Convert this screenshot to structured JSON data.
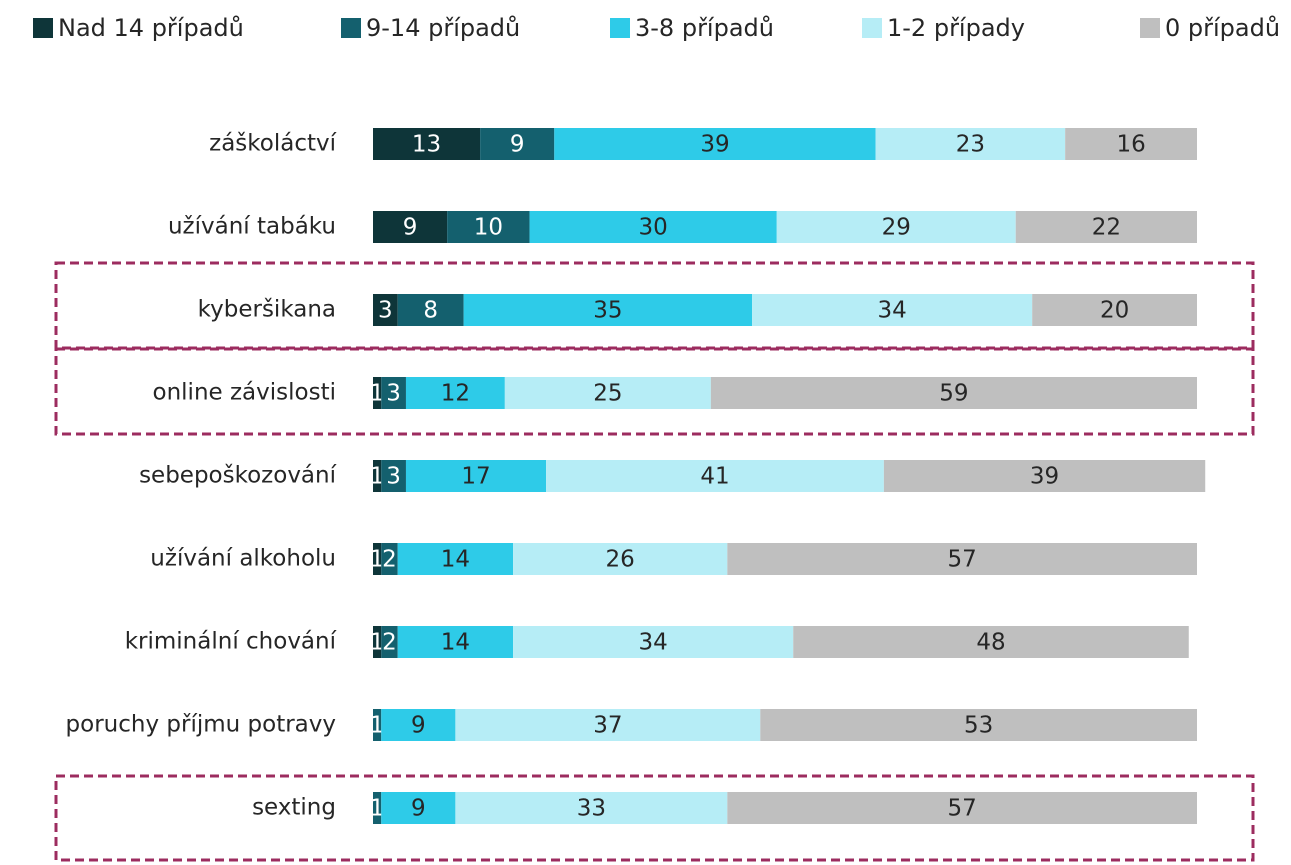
{
  "chart_data": {
    "type": "stacked_bar_horizontal",
    "categories": [
      "záškoláctví",
      "užívání tabáku",
      "kyberšikana",
      "online závislosti",
      "sebepoškozování",
      "užívání alkoholu",
      "kriminální chování",
      "poruchy příjmu potravy",
      "sexting"
    ],
    "series": [
      {
        "name": "Nad 14 případů",
        "color": "#0e3539",
        "values": [
          13,
          9,
          3,
          1,
          1,
          1,
          1,
          0,
          0
        ]
      },
      {
        "name": "9-14 případů",
        "color": "#14606e",
        "values": [
          9,
          10,
          8,
          3,
          3,
          2,
          2,
          1,
          1
        ]
      },
      {
        "name": "3-8 případů",
        "color": "#2ecbe8",
        "values": [
          39,
          30,
          35,
          12,
          17,
          14,
          14,
          9,
          9
        ]
      },
      {
        "name": "1-2 případy",
        "color": "#b6edf6",
        "values": [
          23,
          29,
          34,
          25,
          41,
          26,
          34,
          37,
          33
        ]
      },
      {
        "name": "0 případů",
        "color": "#bfbfbf",
        "values": [
          16,
          22,
          20,
          59,
          39,
          57,
          48,
          53,
          57
        ]
      }
    ],
    "xlim": [
      0,
      100
    ],
    "legend": "top"
  }
}
